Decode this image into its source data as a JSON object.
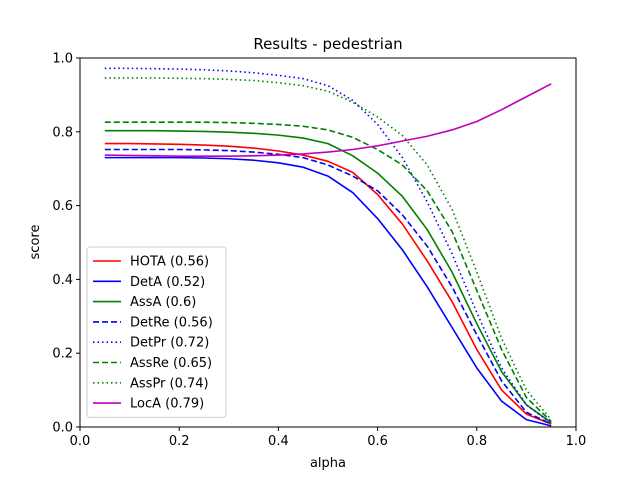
{
  "chart_data": {
    "type": "line",
    "title": "Results - pedestrian",
    "xlabel": "alpha",
    "ylabel": "score",
    "xlim": [
      0.0,
      1.0
    ],
    "ylim": [
      0.0,
      1.0
    ],
    "xticks": [
      "0.0",
      "0.2",
      "0.4",
      "0.6",
      "0.8",
      "1.0"
    ],
    "yticks": [
      "0.0",
      "0.2",
      "0.4",
      "0.6",
      "0.8",
      "1.0"
    ],
    "grid": false,
    "legend_position": "lower-left",
    "x": [
      0.05,
      0.1,
      0.15,
      0.2,
      0.25,
      0.3,
      0.35,
      0.4,
      0.45,
      0.5,
      0.55,
      0.6,
      0.65,
      0.7,
      0.75,
      0.8,
      0.85,
      0.9,
      0.95
    ],
    "series": [
      {
        "name": "HOTA (0.56)",
        "color": "#ff0000",
        "dash": "solid",
        "values": [
          0.768,
          0.768,
          0.767,
          0.766,
          0.764,
          0.761,
          0.756,
          0.748,
          0.737,
          0.72,
          0.69,
          0.63,
          0.55,
          0.45,
          0.34,
          0.21,
          0.1,
          0.035,
          0.008
        ]
      },
      {
        "name": "DetA (0.52)",
        "color": "#0000ff",
        "dash": "solid",
        "values": [
          0.73,
          0.73,
          0.73,
          0.73,
          0.729,
          0.727,
          0.723,
          0.716,
          0.704,
          0.68,
          0.635,
          0.565,
          0.48,
          0.38,
          0.27,
          0.16,
          0.07,
          0.02,
          0.003
        ]
      },
      {
        "name": "AssA (0.6)",
        "color": "#008000",
        "dash": "solid",
        "values": [
          0.803,
          0.803,
          0.803,
          0.802,
          0.801,
          0.799,
          0.796,
          0.791,
          0.783,
          0.768,
          0.735,
          0.688,
          0.625,
          0.535,
          0.42,
          0.28,
          0.15,
          0.06,
          0.012
        ]
      },
      {
        "name": "DetRe (0.56)",
        "color": "#0000ff",
        "dash": "dashed",
        "values": [
          0.752,
          0.752,
          0.752,
          0.752,
          0.751,
          0.749,
          0.745,
          0.739,
          0.73,
          0.71,
          0.68,
          0.64,
          0.575,
          0.49,
          0.38,
          0.25,
          0.125,
          0.04,
          0.008
        ]
      },
      {
        "name": "DetPr (0.72)",
        "color": "#0000ff",
        "dash": "dotted",
        "values": [
          0.972,
          0.972,
          0.971,
          0.97,
          0.968,
          0.965,
          0.96,
          0.953,
          0.944,
          0.925,
          0.885,
          0.82,
          0.73,
          0.61,
          0.47,
          0.31,
          0.16,
          0.06,
          0.01
        ]
      },
      {
        "name": "AssRe (0.65)",
        "color": "#008000",
        "dash": "dashed",
        "values": [
          0.826,
          0.826,
          0.826,
          0.826,
          0.826,
          0.825,
          0.823,
          0.82,
          0.815,
          0.805,
          0.785,
          0.752,
          0.71,
          0.64,
          0.53,
          0.37,
          0.21,
          0.08,
          0.015
        ]
      },
      {
        "name": "AssPr (0.74)",
        "color": "#008000",
        "dash": "dotted",
        "values": [
          0.946,
          0.946,
          0.946,
          0.945,
          0.944,
          0.942,
          0.939,
          0.933,
          0.925,
          0.91,
          0.88,
          0.84,
          0.79,
          0.71,
          0.59,
          0.42,
          0.24,
          0.1,
          0.02
        ]
      },
      {
        "name": "LocA (0.79)",
        "color": "#bf00bf",
        "dash": "solid",
        "values": [
          0.737,
          0.736,
          0.735,
          0.734,
          0.734,
          0.734,
          0.735,
          0.737,
          0.74,
          0.745,
          0.752,
          0.762,
          0.775,
          0.788,
          0.805,
          0.828,
          0.86,
          0.895,
          0.93
        ]
      }
    ]
  }
}
